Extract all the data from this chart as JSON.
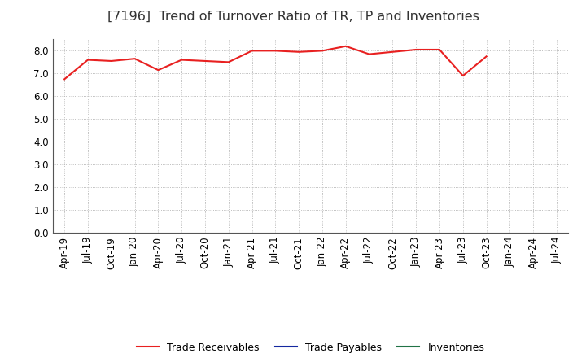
{
  "title": "[7196]  Trend of Turnover Ratio of TR, TP and Inventories",
  "x_labels": [
    "Apr-19",
    "Jul-19",
    "Oct-19",
    "Jan-20",
    "Apr-20",
    "Jul-20",
    "Oct-20",
    "Jan-21",
    "Apr-21",
    "Jul-21",
    "Oct-21",
    "Jan-22",
    "Apr-22",
    "Jul-22",
    "Oct-22",
    "Jan-23",
    "Apr-23",
    "Jul-23",
    "Oct-23",
    "Jan-24",
    "Apr-24",
    "Jul-24"
  ],
  "trade_receivables": [
    6.75,
    7.6,
    7.55,
    7.65,
    7.15,
    7.6,
    7.55,
    7.5,
    8.0,
    8.0,
    7.95,
    8.0,
    8.2,
    7.85,
    7.95,
    8.05,
    8.05,
    6.9,
    7.75,
    null,
    null,
    null
  ],
  "trade_payables": [
    null,
    null,
    null,
    null,
    null,
    null,
    null,
    null,
    null,
    null,
    null,
    null,
    null,
    null,
    null,
    null,
    null,
    null,
    null,
    null,
    null,
    null
  ],
  "inventories": [
    null,
    null,
    null,
    null,
    null,
    null,
    null,
    null,
    null,
    null,
    null,
    null,
    null,
    null,
    null,
    null,
    null,
    null,
    null,
    null,
    null,
    null
  ],
  "ylim": [
    0.0,
    8.5
  ],
  "yticks": [
    0.0,
    1.0,
    2.0,
    3.0,
    4.0,
    5.0,
    6.0,
    7.0,
    8.0
  ],
  "line_color_tr": "#e82020",
  "line_color_tp": "#1428a0",
  "line_color_inv": "#217346",
  "legend_labels": [
    "Trade Receivables",
    "Trade Payables",
    "Inventories"
  ],
  "bg_color": "#ffffff",
  "plot_bg_color": "#ffffff",
  "grid_color": "#aaaaaa",
  "title_fontsize": 11.5,
  "axis_fontsize": 8.5
}
